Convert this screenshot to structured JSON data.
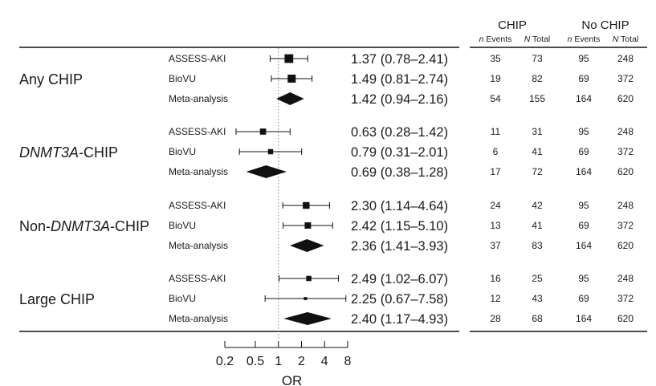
{
  "chart_data": {
    "type": "forest",
    "xlabel": "OR",
    "x_scale": "log",
    "x_ticks": [
      0.2,
      0.5,
      1,
      2,
      4,
      8
    ],
    "x_tick_labels": [
      "0.2",
      "0.5",
      "1",
      "2",
      "4",
      "8"
    ],
    "xlim": [
      0.2,
      8
    ],
    "reference_line": 1,
    "columns": {
      "group_a": "CHIP",
      "group_b": "No CHIP",
      "n_events": "n Events",
      "n_total": "N Total"
    },
    "groups": [
      {
        "label_parts": [
          {
            "text": "Any CHIP",
            "italic": false
          }
        ],
        "rows": [
          {
            "study": "ASSESS-AKI",
            "or": 1.37,
            "lo": 0.78,
            "hi": 2.41,
            "text": "1.37 (0.78–2.41)",
            "chip_events": "35",
            "chip_total": "73",
            "nochip_events": "95",
            "nochip_total": "248",
            "marker": "square",
            "weight": 0.55
          },
          {
            "study": "BioVU",
            "or": 1.49,
            "lo": 0.81,
            "hi": 2.74,
            "text": "1.49 (0.81–2.74)",
            "chip_events": "19",
            "chip_total": "82",
            "nochip_events": "69",
            "nochip_total": "372",
            "marker": "square",
            "weight": 0.5
          },
          {
            "study": "Meta-analysis",
            "or": 1.42,
            "lo": 0.94,
            "hi": 2.16,
            "text": "1.42 (0.94–2.16)",
            "chip_events": "54",
            "chip_total": "155",
            "nochip_events": "164",
            "nochip_total": "620",
            "marker": "diamond"
          }
        ]
      },
      {
        "label_parts": [
          {
            "text": "DNMT3A",
            "italic": true
          },
          {
            "text": "-CHIP",
            "italic": false
          }
        ],
        "rows": [
          {
            "study": "ASSESS-AKI",
            "or": 0.63,
            "lo": 0.28,
            "hi": 1.42,
            "text": "0.63 (0.28–1.42)",
            "chip_events": "11",
            "chip_total": "31",
            "nochip_events": "95",
            "nochip_total": "248",
            "marker": "square",
            "weight": 0.35
          },
          {
            "study": "BioVU",
            "or": 0.79,
            "lo": 0.31,
            "hi": 2.01,
            "text": "0.79 (0.31–2.01)",
            "chip_events": "6",
            "chip_total": "41",
            "nochip_events": "69",
            "nochip_total": "372",
            "marker": "square",
            "weight": 0.28
          },
          {
            "study": "Meta-analysis",
            "or": 0.69,
            "lo": 0.38,
            "hi": 1.28,
            "text": "0.69 (0.38–1.28)",
            "chip_events": "17",
            "chip_total": "72",
            "nochip_events": "164",
            "nochip_total": "620",
            "marker": "diamond"
          }
        ]
      },
      {
        "label_parts": [
          {
            "text": "Non-",
            "italic": false
          },
          {
            "text": "DNMT3A",
            "italic": true
          },
          {
            "text": "-CHIP",
            "italic": false
          }
        ],
        "rows": [
          {
            "study": "ASSESS-AKI",
            "or": 2.3,
            "lo": 1.14,
            "hi": 4.64,
            "text": "2.30 (1.14–4.64)",
            "chip_events": "24",
            "chip_total": "42",
            "nochip_events": "95",
            "nochip_total": "248",
            "marker": "square",
            "weight": 0.4
          },
          {
            "study": "BioVU",
            "or": 2.42,
            "lo": 1.15,
            "hi": 5.1,
            "text": "2.42 (1.15–5.10)",
            "chip_events": "13",
            "chip_total": "41",
            "nochip_events": "69",
            "nochip_total": "372",
            "marker": "square",
            "weight": 0.37
          },
          {
            "study": "Meta-analysis",
            "or": 2.36,
            "lo": 1.41,
            "hi": 3.93,
            "text": "2.36 (1.41–3.93)",
            "chip_events": "37",
            "chip_total": "83",
            "nochip_events": "164",
            "nochip_total": "620",
            "marker": "diamond"
          }
        ]
      },
      {
        "label_parts": [
          {
            "text": "Large CHIP",
            "italic": false
          }
        ],
        "rows": [
          {
            "study": "ASSESS-AKI",
            "or": 2.49,
            "lo": 1.02,
            "hi": 6.07,
            "text": "2.49 (1.02–6.07)",
            "chip_events": "16",
            "chip_total": "25",
            "nochip_events": "95",
            "nochip_total": "248",
            "marker": "square",
            "weight": 0.28
          },
          {
            "study": "BioVU",
            "or": 2.25,
            "lo": 0.67,
            "hi": 7.58,
            "text": "2.25 (0.67–7.58)",
            "chip_events": "12",
            "chip_total": "43",
            "nochip_events": "69",
            "nochip_total": "372",
            "marker": "square",
            "weight": 0.12
          },
          {
            "study": "Meta-analysis",
            "or": 2.4,
            "lo": 1.17,
            "hi": 4.93,
            "text": "2.40 (1.17–4.93)",
            "chip_events": "28",
            "chip_total": "68",
            "nochip_events": "164",
            "nochip_total": "620",
            "marker": "diamond"
          }
        ]
      }
    ],
    "colors": {
      "ink": "#111111",
      "ref_line": "#7a7a7a"
    }
  }
}
